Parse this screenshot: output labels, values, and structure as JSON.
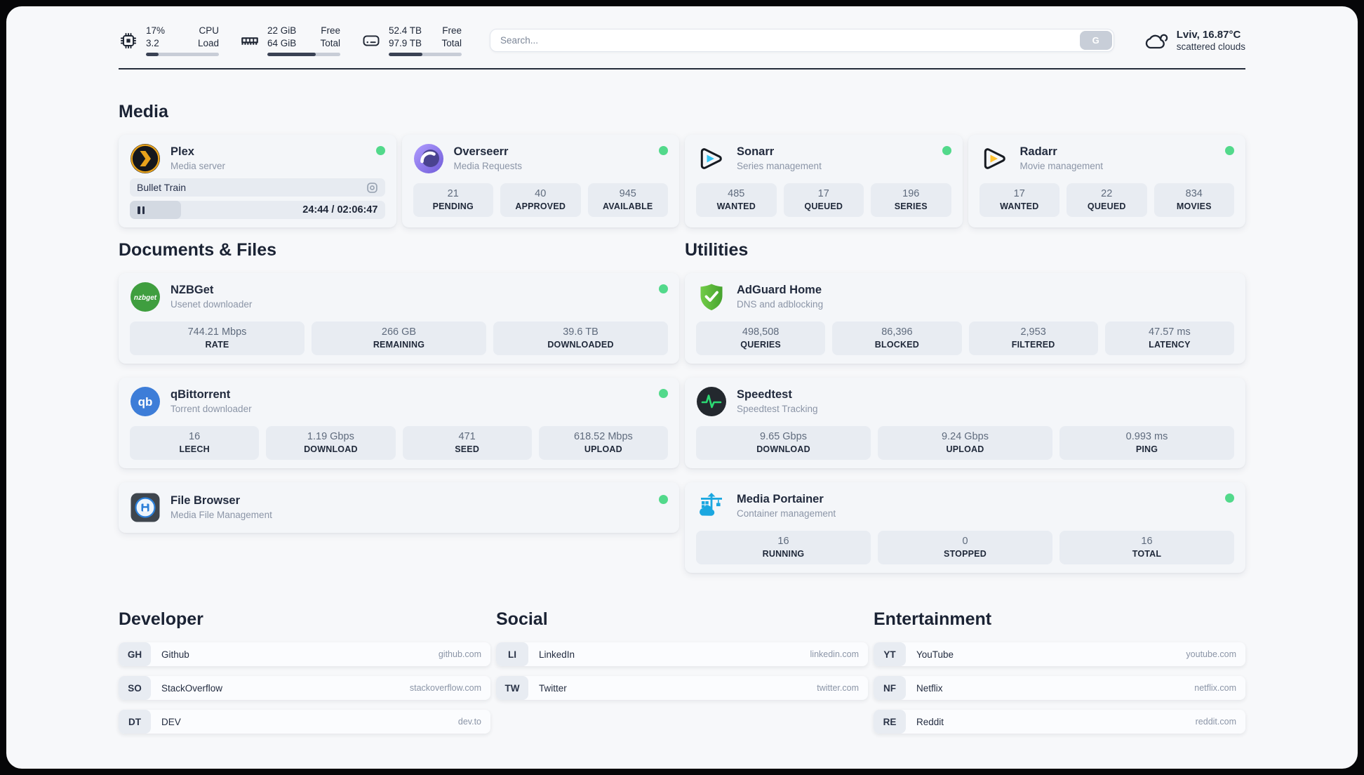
{
  "colors": {
    "status_online": "#52d98b",
    "divider_dark": "#252c3a",
    "plex_gold": "#e8a21b",
    "sonarr_cyan": "#35c5f4",
    "radarr_amber": "#ffc230",
    "qbittorrent_blue": "#3d7dd8",
    "nzbget_green": "#3f9e3f",
    "adguard_green": "#5dbe3a",
    "speedtest_pulse": "#2bd973",
    "portainer_blue": "#1ba7e0"
  },
  "header": {
    "metrics": [
      {
        "icon": "cpu-icon",
        "col1": [
          "17%",
          "3.2"
        ],
        "col2": [
          "CPU",
          "Load"
        ],
        "progress": 17
      },
      {
        "icon": "ram-icon",
        "col1": [
          "22 GiB",
          "64 GiB"
        ],
        "col2": [
          "Free",
          "Total"
        ],
        "progress": 66
      },
      {
        "icon": "disk-icon",
        "col1": [
          "52.4 TB",
          "97.9 TB"
        ],
        "col2": [
          "Free",
          "Total"
        ],
        "progress": 46
      }
    ],
    "search": {
      "placeholder": "Search...",
      "engine_button": "G"
    },
    "weather": {
      "summary": "Lviv, 16.87°C",
      "condition": "scattered clouds"
    }
  },
  "icon_labels": {
    "nzbget": "nzbget",
    "qbittorrent": "qb"
  },
  "sections": {
    "media": {
      "title": "Media",
      "plex": {
        "name": "Plex",
        "subtitle": "Media server",
        "online": true,
        "now_playing": {
          "title": "Bullet Train",
          "progress_pct": 20,
          "time": "24:44 / 02:06:47"
        }
      },
      "overseerr": {
        "name": "Overseerr",
        "subtitle": "Media Requests",
        "online": true,
        "stats": [
          {
            "value": "21",
            "label": "PENDING"
          },
          {
            "value": "40",
            "label": "APPROVED"
          },
          {
            "value": "945",
            "label": "AVAILABLE"
          }
        ]
      },
      "sonarr": {
        "name": "Sonarr",
        "subtitle": "Series management",
        "online": true,
        "stats": [
          {
            "value": "485",
            "label": "WANTED"
          },
          {
            "value": "17",
            "label": "QUEUED"
          },
          {
            "value": "196",
            "label": "SERIES"
          }
        ]
      },
      "radarr": {
        "name": "Radarr",
        "subtitle": "Movie management",
        "online": true,
        "stats": [
          {
            "value": "17",
            "label": "WANTED"
          },
          {
            "value": "22",
            "label": "QUEUED"
          },
          {
            "value": "834",
            "label": "MOVIES"
          }
        ]
      }
    },
    "documents": {
      "title": "Documents & Files",
      "nzbget": {
        "name": "NZBGet",
        "subtitle": "Usenet downloader",
        "online": true,
        "stats": [
          {
            "value": "744.21 Mbps",
            "label": "RATE"
          },
          {
            "value": "266 GB",
            "label": "REMAINING"
          },
          {
            "value": "39.6 TB",
            "label": "DOWNLOADED"
          }
        ]
      },
      "qbittorrent": {
        "name": "qBittorrent",
        "subtitle": "Torrent downloader",
        "online": true,
        "stats": [
          {
            "value": "16",
            "label": "LEECH"
          },
          {
            "value": "1.19 Gbps",
            "label": "DOWNLOAD"
          },
          {
            "value": "471",
            "label": "SEED"
          },
          {
            "value": "618.52 Mbps",
            "label": "UPLOAD"
          }
        ]
      },
      "filebrowser": {
        "name": "File Browser",
        "subtitle": "Media File Management",
        "online": true
      }
    },
    "utilities": {
      "title": "Utilities",
      "adguard": {
        "name": "AdGuard Home",
        "subtitle": "DNS and adblocking",
        "stats": [
          {
            "value": "498,508",
            "label": "QUERIES"
          },
          {
            "value": "86,396",
            "label": "BLOCKED"
          },
          {
            "value": "2,953",
            "label": "FILTERED"
          },
          {
            "value": "47.57 ms",
            "label": "LATENCY"
          }
        ]
      },
      "speedtest": {
        "name": "Speedtest",
        "subtitle": "Speedtest Tracking",
        "stats": [
          {
            "value": "9.65 Gbps",
            "label": "DOWNLOAD"
          },
          {
            "value": "9.24 Gbps",
            "label": "UPLOAD"
          },
          {
            "value": "0.993 ms",
            "label": "PING"
          }
        ]
      },
      "portainer": {
        "name": "Media Portainer",
        "subtitle": "Container management",
        "online": true,
        "stats": [
          {
            "value": "16",
            "label": "RUNNING"
          },
          {
            "value": "0",
            "label": "STOPPED"
          },
          {
            "value": "16",
            "label": "TOTAL"
          }
        ]
      }
    },
    "bookmarks": [
      {
        "title": "Developer",
        "links": [
          {
            "abbr": "GH",
            "name": "Github",
            "url": "github.com"
          },
          {
            "abbr": "SO",
            "name": "StackOverflow",
            "url": "stackoverflow.com"
          },
          {
            "abbr": "DT",
            "name": "DEV",
            "url": "dev.to"
          }
        ]
      },
      {
        "title": "Social",
        "links": [
          {
            "abbr": "LI",
            "name": "LinkedIn",
            "url": "linkedin.com"
          },
          {
            "abbr": "TW",
            "name": "Twitter",
            "url": "twitter.com"
          }
        ]
      },
      {
        "title": "Entertainment",
        "links": [
          {
            "abbr": "YT",
            "name": "YouTube",
            "url": "youtube.com"
          },
          {
            "abbr": "NF",
            "name": "Netflix",
            "url": "netflix.com"
          },
          {
            "abbr": "RE",
            "name": "Reddit",
            "url": "reddit.com"
          }
        ]
      }
    ]
  }
}
